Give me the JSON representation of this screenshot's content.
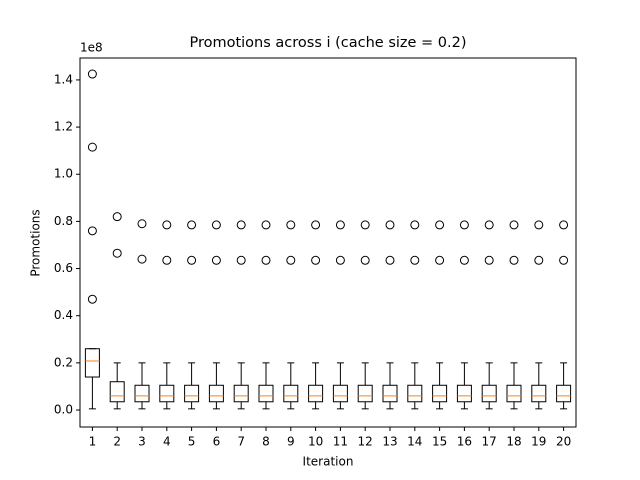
{
  "chart_data": {
    "type": "box",
    "title": "Promotions across i (cache size = 0.2)",
    "x_label": "Iteration",
    "y_label": "Promotions",
    "y_offset_label": "1e8",
    "categories": [
      "1",
      "2",
      "3",
      "4",
      "5",
      "6",
      "7",
      "8",
      "9",
      "10",
      "11",
      "12",
      "13",
      "14",
      "15",
      "16",
      "17",
      "18",
      "19",
      "20"
    ],
    "boxes": [
      {
        "whislo": 0.005,
        "q1": 0.14,
        "med": 0.208,
        "q3": 0.26,
        "whishi": 0.26,
        "fliers": [
          0.47,
          0.76,
          1.115,
          1.425
        ]
      },
      {
        "whislo": 0.005,
        "q1": 0.035,
        "med": 0.06,
        "q3": 0.12,
        "whishi": 0.2,
        "fliers": [
          0.665,
          0.82
        ]
      },
      {
        "whislo": 0.005,
        "q1": 0.035,
        "med": 0.06,
        "q3": 0.105,
        "whishi": 0.2,
        "fliers": [
          0.64,
          0.79
        ]
      },
      {
        "whislo": 0.005,
        "q1": 0.035,
        "med": 0.06,
        "q3": 0.105,
        "whishi": 0.2,
        "fliers": [
          0.635,
          0.785
        ]
      },
      {
        "whislo": 0.005,
        "q1": 0.035,
        "med": 0.06,
        "q3": 0.105,
        "whishi": 0.2,
        "fliers": [
          0.635,
          0.785
        ]
      },
      {
        "whislo": 0.005,
        "q1": 0.035,
        "med": 0.06,
        "q3": 0.105,
        "whishi": 0.2,
        "fliers": [
          0.635,
          0.785
        ]
      },
      {
        "whislo": 0.005,
        "q1": 0.035,
        "med": 0.06,
        "q3": 0.105,
        "whishi": 0.2,
        "fliers": [
          0.635,
          0.785
        ]
      },
      {
        "whislo": 0.005,
        "q1": 0.035,
        "med": 0.06,
        "q3": 0.105,
        "whishi": 0.2,
        "fliers": [
          0.635,
          0.785
        ]
      },
      {
        "whislo": 0.005,
        "q1": 0.035,
        "med": 0.06,
        "q3": 0.105,
        "whishi": 0.2,
        "fliers": [
          0.635,
          0.785
        ]
      },
      {
        "whislo": 0.005,
        "q1": 0.035,
        "med": 0.06,
        "q3": 0.105,
        "whishi": 0.2,
        "fliers": [
          0.635,
          0.785
        ]
      },
      {
        "whislo": 0.005,
        "q1": 0.035,
        "med": 0.06,
        "q3": 0.105,
        "whishi": 0.2,
        "fliers": [
          0.635,
          0.785
        ]
      },
      {
        "whislo": 0.005,
        "q1": 0.035,
        "med": 0.06,
        "q3": 0.105,
        "whishi": 0.2,
        "fliers": [
          0.635,
          0.785
        ]
      },
      {
        "whislo": 0.005,
        "q1": 0.035,
        "med": 0.06,
        "q3": 0.105,
        "whishi": 0.2,
        "fliers": [
          0.635,
          0.785
        ]
      },
      {
        "whislo": 0.005,
        "q1": 0.035,
        "med": 0.06,
        "q3": 0.105,
        "whishi": 0.2,
        "fliers": [
          0.635,
          0.785
        ]
      },
      {
        "whislo": 0.005,
        "q1": 0.035,
        "med": 0.06,
        "q3": 0.105,
        "whishi": 0.2,
        "fliers": [
          0.635,
          0.785
        ]
      },
      {
        "whislo": 0.005,
        "q1": 0.035,
        "med": 0.06,
        "q3": 0.105,
        "whishi": 0.2,
        "fliers": [
          0.635,
          0.785
        ]
      },
      {
        "whislo": 0.005,
        "q1": 0.035,
        "med": 0.06,
        "q3": 0.105,
        "whishi": 0.2,
        "fliers": [
          0.635,
          0.785
        ]
      },
      {
        "whislo": 0.005,
        "q1": 0.035,
        "med": 0.06,
        "q3": 0.105,
        "whishi": 0.2,
        "fliers": [
          0.635,
          0.785
        ]
      },
      {
        "whislo": 0.005,
        "q1": 0.035,
        "med": 0.06,
        "q3": 0.105,
        "whishi": 0.2,
        "fliers": [
          0.635,
          0.785
        ]
      },
      {
        "whislo": 0.005,
        "q1": 0.035,
        "med": 0.06,
        "q3": 0.105,
        "whishi": 0.2,
        "fliers": [
          0.635,
          0.785
        ]
      }
    ],
    "box_color": "#000000",
    "median_color": "#ff7f0e",
    "ylim": [
      -0.072,
      1.493
    ],
    "yticks": [
      {
        "value": 0,
        "label": "0.0"
      },
      0.2,
      0.4,
      0.6,
      0.8,
      {
        "value": 1,
        "label": "1.0"
      },
      1.2,
      1.4
    ],
    "grid": false
  }
}
